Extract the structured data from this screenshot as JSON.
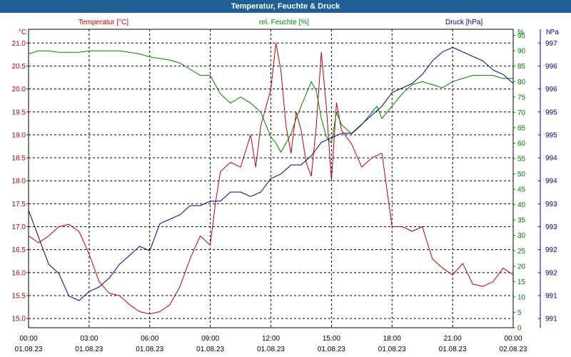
{
  "window": {
    "title": "Temperatur, Feuchte & Druck"
  },
  "chart_data": {
    "type": "line",
    "title": "Temperatur, Feuchte & Druck",
    "grid": true,
    "colors": {
      "temperature": "#c00000",
      "humidity": "#008000",
      "pressure": "#000099",
      "grid": "#000000",
      "titlebar": "#1f5f96"
    },
    "x_ticks": [
      {
        "time": "00:00",
        "date": "01.08.23"
      },
      {
        "time": "03:00",
        "date": "01.08.23"
      },
      {
        "time": "06:00",
        "date": "01.08.23"
      },
      {
        "time": "09:00",
        "date": "01.08.23"
      },
      {
        "time": "12:00",
        "date": "01.08.23"
      },
      {
        "time": "15:00",
        "date": "01.08.23"
      },
      {
        "time": "18:00",
        "date": "01.08.23"
      },
      {
        "time": "21:00",
        "date": "01.08.23"
      },
      {
        "time": "00:00",
        "date": "02.08.23"
      }
    ],
    "axes": {
      "temperature": {
        "label": "Temperatur [°C]",
        "unit": "°C",
        "ylim": [
          14.8,
          21.3
        ],
        "ticks": [
          "15.0",
          "15.5",
          "16.0",
          "16.5",
          "17.0",
          "17.5",
          "18.0",
          "18.5",
          "19.0",
          "19.5",
          "20.0",
          "20.5",
          "21.0"
        ]
      },
      "humidity": {
        "label": "rel. Feuchte [%]",
        "unit": "%",
        "ylim": [
          0,
          97
        ],
        "ticks": [
          "0",
          "5",
          "10",
          "15",
          "20",
          "25",
          "30",
          "35",
          "40",
          "45",
          "50",
          "55",
          "60",
          "65",
          "70",
          "75",
          "80",
          "85",
          "90",
          "95"
        ]
      },
      "pressure": {
        "label": "Druck [hPa]",
        "unit": "hPa",
        "ylim": [
          990.6,
          997.2
        ],
        "ticks": [
          "991",
          "991",
          "992",
          "992",
          "993",
          "993",
          "994",
          "994",
          "995",
          "995",
          "996",
          "996",
          "997"
        ]
      }
    },
    "series": [
      {
        "name": "Temperatur [°C]",
        "axis": "temperature",
        "x": [
          "00:00",
          "00:30",
          "01:00",
          "01:30",
          "02:00",
          "02:30",
          "03:00",
          "03:30",
          "04:00",
          "04:30",
          "05:00",
          "05:30",
          "06:00",
          "06:30",
          "07:00",
          "07:30",
          "08:00",
          "08:30",
          "09:00",
          "09:15",
          "09:30",
          "10:00",
          "10:30",
          "11:00",
          "11:15",
          "11:30",
          "12:00",
          "12:15",
          "12:30",
          "12:45",
          "13:00",
          "13:15",
          "13:30",
          "13:45",
          "14:00",
          "14:15",
          "14:30",
          "14:45",
          "15:00",
          "15:15",
          "15:30",
          "16:00",
          "16:30",
          "17:00",
          "17:30",
          "18:00",
          "18:30",
          "19:00",
          "19:30",
          "20:00",
          "20:30",
          "21:00",
          "21:30",
          "22:00",
          "22:30",
          "23:00",
          "23:30",
          "00:00"
        ],
        "y": [
          16.8,
          16.65,
          16.8,
          17.0,
          17.05,
          16.9,
          16.4,
          15.8,
          15.55,
          15.5,
          15.3,
          15.15,
          15.1,
          15.15,
          15.3,
          15.7,
          16.3,
          16.8,
          16.6,
          17.5,
          18.2,
          18.4,
          18.3,
          19.0,
          18.3,
          19.2,
          20.0,
          21.0,
          20.4,
          19.2,
          18.6,
          19.5,
          19.1,
          18.4,
          18.1,
          19.2,
          20.8,
          19.6,
          18.0,
          19.7,
          19.1,
          18.8,
          18.3,
          18.5,
          18.6,
          17.0,
          17.0,
          16.9,
          17.0,
          16.3,
          16.1,
          15.95,
          16.2,
          15.75,
          15.7,
          15.8,
          16.1,
          15.95
        ]
      },
      {
        "name": "rel. Feuchte [%]",
        "axis": "humidity",
        "x": [
          "00:00",
          "00:30",
          "01:00",
          "01:30",
          "02:00",
          "02:30",
          "03:00",
          "03:30",
          "04:00",
          "04:30",
          "05:00",
          "05:30",
          "06:00",
          "06:30",
          "07:00",
          "07:30",
          "08:00",
          "08:30",
          "09:00",
          "09:15",
          "09:30",
          "10:00",
          "10:30",
          "11:00",
          "11:30",
          "12:00",
          "12:15",
          "12:30",
          "13:00",
          "13:15",
          "13:30",
          "14:00",
          "14:15",
          "14:30",
          "14:45",
          "15:00",
          "15:15",
          "15:30",
          "16:00",
          "16:30",
          "17:00",
          "17:15",
          "17:30",
          "18:00",
          "18:30",
          "19:00",
          "19:30",
          "20:00",
          "20:30",
          "21:00",
          "21:30",
          "22:00",
          "22:30",
          "23:00",
          "23:30",
          "00:00"
        ],
        "y": [
          89,
          90,
          90,
          89.5,
          89.5,
          89.5,
          90,
          90,
          90,
          90,
          89.5,
          89,
          88,
          87.5,
          87,
          86,
          84,
          82,
          82,
          79,
          76,
          73,
          75,
          73,
          70,
          62,
          60,
          57,
          63,
          68,
          72,
          80,
          77,
          68,
          62,
          60,
          70,
          66,
          63,
          66,
          70,
          72,
          68,
          72,
          76,
          79,
          80,
          79,
          78,
          80,
          81,
          82,
          82,
          82,
          81,
          81
        ]
      },
      {
        "name": "Druck [hPa]",
        "axis": "pressure",
        "x": [
          "00:00",
          "00:30",
          "01:00",
          "01:30",
          "02:00",
          "02:30",
          "03:00",
          "03:30",
          "04:00",
          "04:30",
          "05:00",
          "05:30",
          "06:00",
          "06:30",
          "07:00",
          "07:30",
          "08:00",
          "08:30",
          "09:00",
          "09:30",
          "10:00",
          "10:30",
          "11:00",
          "11:30",
          "12:00",
          "12:30",
          "13:00",
          "13:30",
          "14:00",
          "14:30",
          "15:00",
          "15:30",
          "16:00",
          "16:30",
          "17:00",
          "17:30",
          "18:00",
          "18:30",
          "19:00",
          "19:30",
          "20:00",
          "20:30",
          "21:00",
          "21:30",
          "22:00",
          "22:30",
          "23:00",
          "23:30",
          "00:00"
        ],
        "y": [
          993.2,
          992.6,
          992.0,
          991.8,
          991.3,
          991.2,
          991.4,
          991.5,
          991.7,
          992.0,
          992.2,
          992.4,
          992.3,
          992.9,
          993.0,
          993.1,
          993.3,
          993.3,
          993.4,
          993.4,
          993.6,
          993.6,
          993.5,
          993.6,
          993.9,
          994.0,
          994.2,
          994.2,
          994.4,
          994.7,
          994.8,
          994.9,
          994.9,
          995.1,
          995.3,
          995.5,
          995.8,
          995.9,
          996.0,
          996.2,
          996.5,
          996.7,
          996.8,
          996.7,
          996.6,
          996.5,
          996.3,
          996.2,
          996.0
        ]
      }
    ]
  }
}
